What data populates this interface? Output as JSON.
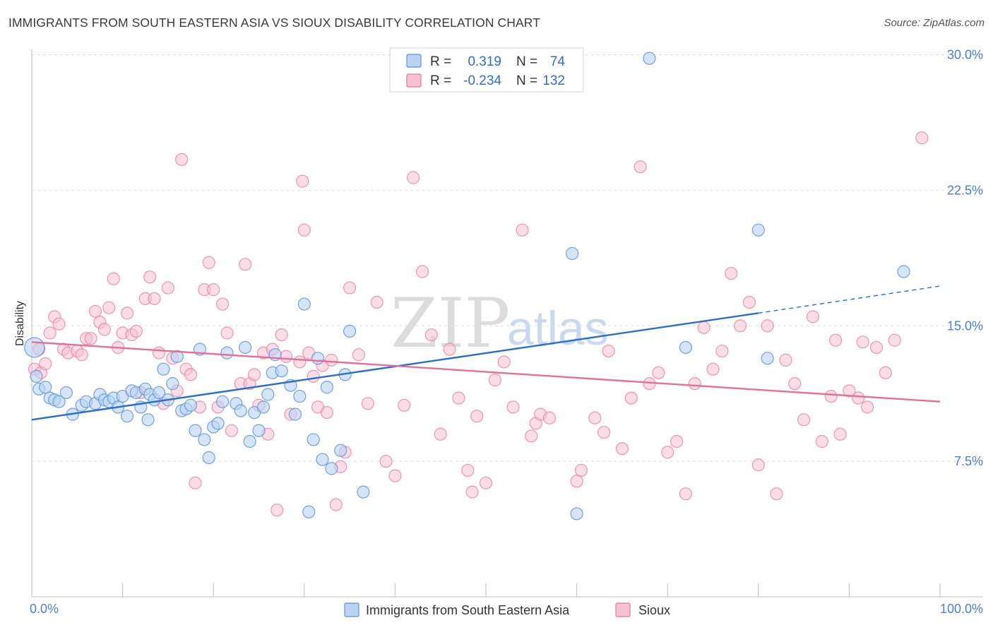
{
  "header": {
    "title": "IMMIGRANTS FROM SOUTH EASTERN ASIA VS SIOUX DISABILITY CORRELATION CHART",
    "source": "Source: ZipAtlas.com"
  },
  "watermark": {
    "zip": "ZIP",
    "atlas": "atlas"
  },
  "legend": {
    "rows": [
      {
        "r_label": "R =",
        "r_value": "0.319",
        "n_label": "N =",
        "n_value": "74"
      },
      {
        "r_label": "R =",
        "r_value": "-0.234",
        "n_label": "N =",
        "n_value": "132"
      }
    ]
  },
  "chart_data": {
    "type": "scatter",
    "title": "IMMIGRANTS FROM SOUTH EASTERN ASIA VS SIOUX DISABILITY CORRELATION CHART",
    "xlabel": "",
    "ylabel": "Disability",
    "xlim": [
      0,
      100
    ],
    "ylim": [
      0,
      31
    ],
    "x_tick_labels": [
      "0.0%",
      "100.0%"
    ],
    "y_ticks": [
      7.5,
      15.0,
      22.5,
      30.0
    ],
    "y_tick_labels": [
      "7.5%",
      "15.0%",
      "22.5%",
      "30.0%"
    ],
    "grid": true,
    "colors": {
      "blue": "#5b93d9",
      "blue_fill": "#b9d3f2",
      "pink": "#e8779d",
      "pink_fill": "#f6c1d2",
      "blue_line": "#2a6fcd",
      "pink_line": "#e4709a"
    },
    "series": [
      {
        "name": "Immigrants from South Eastern Asia",
        "r": 0.319,
        "n": 74,
        "trend": {
          "x0": 0,
          "y0": 9.8,
          "x1": 80,
          "y1": 15.7,
          "dash_to_x": 100,
          "dash_to_y": 17.2
        },
        "points": [
          [
            0.3,
            13.8
          ],
          [
            0.5,
            12.2
          ],
          [
            0.8,
            11.5
          ],
          [
            1.5,
            11.6
          ],
          [
            2.0,
            11.0
          ],
          [
            2.5,
            10.9
          ],
          [
            3.0,
            10.8
          ],
          [
            3.8,
            11.3
          ],
          [
            4.5,
            10.1
          ],
          [
            5.5,
            10.6
          ],
          [
            6.0,
            10.8
          ],
          [
            7.0,
            10.7
          ],
          [
            7.5,
            11.2
          ],
          [
            8.0,
            10.9
          ],
          [
            8.5,
            10.8
          ],
          [
            9.0,
            11.0
          ],
          [
            9.5,
            10.5
          ],
          [
            10.0,
            11.1
          ],
          [
            10.5,
            10.0
          ],
          [
            11.0,
            11.4
          ],
          [
            11.5,
            11.3
          ],
          [
            12.0,
            10.5
          ],
          [
            12.5,
            11.5
          ],
          [
            12.8,
            9.8
          ],
          [
            13.0,
            11.2
          ],
          [
            13.5,
            10.9
          ],
          [
            14.0,
            11.3
          ],
          [
            14.5,
            12.6
          ],
          [
            15.0,
            10.9
          ],
          [
            15.5,
            11.8
          ],
          [
            16.0,
            13.3
          ],
          [
            16.5,
            10.3
          ],
          [
            17.0,
            10.4
          ],
          [
            17.5,
            10.6
          ],
          [
            18.0,
            9.2
          ],
          [
            18.5,
            13.7
          ],
          [
            19.0,
            8.7
          ],
          [
            19.5,
            7.7
          ],
          [
            20.0,
            9.4
          ],
          [
            20.5,
            9.6
          ],
          [
            21.0,
            10.8
          ],
          [
            21.5,
            13.5
          ],
          [
            22.5,
            10.7
          ],
          [
            23.0,
            10.3
          ],
          [
            23.5,
            13.8
          ],
          [
            24.0,
            8.6
          ],
          [
            24.5,
            10.2
          ],
          [
            25.0,
            9.2
          ],
          [
            25.5,
            10.5
          ],
          [
            26.0,
            11.2
          ],
          [
            26.5,
            12.4
          ],
          [
            26.8,
            13.4
          ],
          [
            27.5,
            12.5
          ],
          [
            28.5,
            11.7
          ],
          [
            29.0,
            10.1
          ],
          [
            29.5,
            11.1
          ],
          [
            30.0,
            16.2
          ],
          [
            30.5,
            4.7
          ],
          [
            31.0,
            8.7
          ],
          [
            31.5,
            13.2
          ],
          [
            32.0,
            7.6
          ],
          [
            32.5,
            11.6
          ],
          [
            33.0,
            7.1
          ],
          [
            34.0,
            8.1
          ],
          [
            34.5,
            12.3
          ],
          [
            35.0,
            14.7
          ],
          [
            36.5,
            5.8
          ],
          [
            59.5,
            19.0
          ],
          [
            60.0,
            4.6
          ],
          [
            68.0,
            29.8
          ],
          [
            72.0,
            13.8
          ],
          [
            80.0,
            20.3
          ],
          [
            81.0,
            13.2
          ],
          [
            96.0,
            18.0
          ]
        ]
      },
      {
        "name": "Sioux",
        "r": -0.234,
        "n": 132,
        "trend": {
          "x0": 0,
          "y0": 14.1,
          "x1": 100,
          "y1": 10.8
        },
        "points": [
          [
            0.3,
            12.6
          ],
          [
            0.8,
            13.7
          ],
          [
            1.0,
            12.4
          ],
          [
            1.5,
            12.9
          ],
          [
            2.0,
            14.6
          ],
          [
            2.5,
            15.5
          ],
          [
            3.0,
            15.1
          ],
          [
            3.5,
            13.7
          ],
          [
            4.0,
            13.5
          ],
          [
            5.0,
            13.6
          ],
          [
            5.5,
            13.4
          ],
          [
            6.0,
            14.3
          ],
          [
            6.5,
            14.3
          ],
          [
            7.0,
            15.8
          ],
          [
            7.5,
            15.2
          ],
          [
            8.0,
            14.8
          ],
          [
            8.5,
            16.0
          ],
          [
            9.0,
            17.6
          ],
          [
            9.5,
            13.8
          ],
          [
            10.0,
            14.6
          ],
          [
            10.5,
            15.7
          ],
          [
            11.0,
            14.5
          ],
          [
            11.5,
            14.7
          ],
          [
            12.0,
            11.3
          ],
          [
            12.5,
            16.5
          ],
          [
            13.0,
            17.7
          ],
          [
            13.5,
            16.5
          ],
          [
            14.0,
            13.5
          ],
          [
            14.5,
            10.7
          ],
          [
            15.0,
            17.1
          ],
          [
            15.5,
            13.2
          ],
          [
            16.0,
            11.4
          ],
          [
            16.5,
            24.2
          ],
          [
            17.0,
            12.6
          ],
          [
            17.5,
            12.3
          ],
          [
            18.0,
            6.3
          ],
          [
            18.5,
            10.5
          ],
          [
            19.0,
            17.0
          ],
          [
            19.5,
            18.5
          ],
          [
            20.0,
            17.0
          ],
          [
            20.5,
            10.5
          ],
          [
            21.0,
            16.2
          ],
          [
            21.5,
            14.6
          ],
          [
            22.0,
            9.2
          ],
          [
            23.0,
            11.8
          ],
          [
            23.5,
            18.4
          ],
          [
            24.0,
            11.8
          ],
          [
            24.5,
            12.3
          ],
          [
            25.0,
            10.6
          ],
          [
            25.5,
            13.5
          ],
          [
            26.0,
            9.0
          ],
          [
            26.5,
            13.7
          ],
          [
            27.0,
            4.8
          ],
          [
            27.5,
            14.5
          ],
          [
            28.0,
            13.3
          ],
          [
            28.5,
            10.1
          ],
          [
            29.5,
            13.0
          ],
          [
            29.8,
            23.0
          ],
          [
            30.0,
            20.3
          ],
          [
            30.5,
            13.5
          ],
          [
            31.0,
            12.2
          ],
          [
            31.5,
            10.5
          ],
          [
            32.0,
            12.8
          ],
          [
            32.5,
            10.2
          ],
          [
            33.0,
            13.1
          ],
          [
            33.5,
            5.1
          ],
          [
            34.0,
            7.2
          ],
          [
            34.5,
            8.0
          ],
          [
            35.0,
            17.1
          ],
          [
            36.0,
            13.4
          ],
          [
            37.0,
            10.7
          ],
          [
            38.0,
            16.3
          ],
          [
            39.0,
            7.5
          ],
          [
            40.0,
            6.7
          ],
          [
            41.0,
            10.6
          ],
          [
            42.0,
            23.2
          ],
          [
            43.0,
            18.0
          ],
          [
            44.0,
            14.5
          ],
          [
            45.0,
            9.0
          ],
          [
            46.0,
            13.7
          ],
          [
            47.0,
            11.0
          ],
          [
            48.0,
            7.0
          ],
          [
            48.5,
            5.8
          ],
          [
            49.0,
            10.0
          ],
          [
            50.0,
            6.3
          ],
          [
            51.0,
            12.0
          ],
          [
            52.0,
            13.0
          ],
          [
            53.0,
            10.5
          ],
          [
            54.0,
            20.3
          ],
          [
            55.0,
            8.9
          ],
          [
            55.5,
            9.6
          ],
          [
            56.0,
            10.1
          ],
          [
            57.0,
            9.9
          ],
          [
            60.0,
            6.4
          ],
          [
            60.5,
            7.0
          ],
          [
            62.0,
            9.9
          ],
          [
            63.0,
            9.1
          ],
          [
            63.5,
            13.6
          ],
          [
            65.0,
            8.2
          ],
          [
            66.0,
            11.0
          ],
          [
            67.0,
            23.8
          ],
          [
            68.0,
            11.8
          ],
          [
            69.0,
            12.4
          ],
          [
            70.0,
            8.0
          ],
          [
            71.0,
            8.6
          ],
          [
            72.0,
            5.7
          ],
          [
            73.0,
            11.8
          ],
          [
            74.0,
            14.9
          ],
          [
            75.0,
            12.6
          ],
          [
            76.0,
            13.6
          ],
          [
            77.0,
            17.9
          ],
          [
            78.0,
            15.0
          ],
          [
            79.0,
            16.3
          ],
          [
            80.0,
            7.3
          ],
          [
            81.0,
            15.0
          ],
          [
            82.0,
            5.7
          ],
          [
            83.0,
            13.1
          ],
          [
            84.0,
            11.8
          ],
          [
            85.0,
            9.8
          ],
          [
            86.0,
            15.5
          ],
          [
            87.0,
            8.6
          ],
          [
            88.0,
            11.1
          ],
          [
            88.5,
            14.2
          ],
          [
            89.0,
            9.0
          ],
          [
            90.0,
            11.4
          ],
          [
            91.0,
            11.0
          ],
          [
            91.5,
            14.1
          ],
          [
            92.0,
            10.5
          ],
          [
            93.0,
            13.8
          ],
          [
            94.0,
            12.4
          ],
          [
            95.0,
            14.2
          ],
          [
            98.0,
            25.4
          ]
        ]
      }
    ]
  },
  "bottom_legend": {
    "items": [
      {
        "label": "Immigrants from South Eastern Asia"
      },
      {
        "label": "Sioux"
      }
    ]
  }
}
